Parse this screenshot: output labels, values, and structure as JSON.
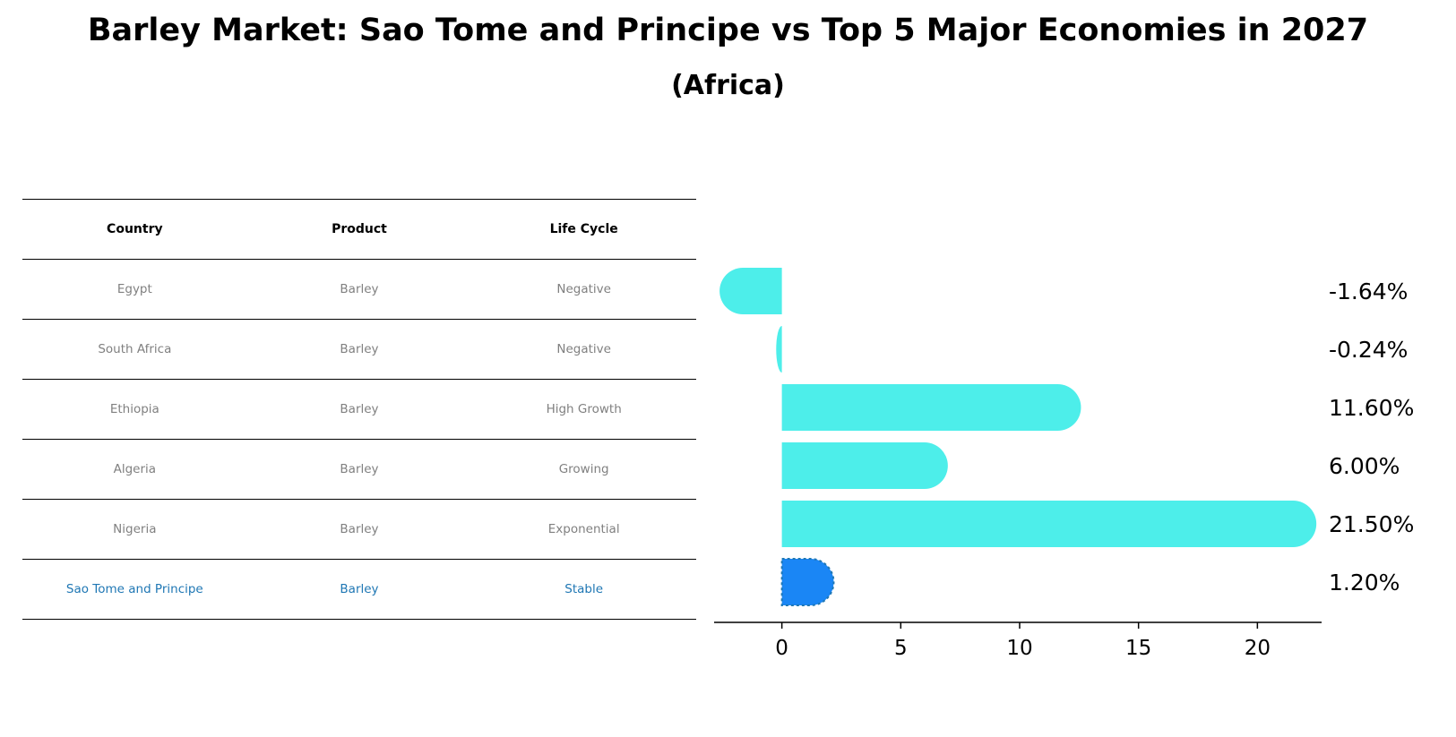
{
  "title": "Barley Market: Sao Tome and Principe vs Top 5 Major Economies in 2027",
  "subtitle": "(Africa)",
  "table": {
    "headers": [
      "Country",
      "Product",
      "Life Cycle"
    ],
    "rows": [
      [
        "Egypt",
        "Barley",
        "Negative"
      ],
      [
        "South Africa",
        "Barley",
        "Negative"
      ],
      [
        "Ethiopia",
        "Barley",
        "High Growth"
      ],
      [
        "Algeria",
        "Barley",
        "Growing"
      ],
      [
        "Nigeria",
        "Barley",
        "Exponential"
      ],
      [
        "Sao Tome and Principe",
        "Barley",
        "Stable"
      ]
    ],
    "highlight_row": 5
  },
  "colors": {
    "bar": "#4deeea",
    "highlight_bar": "#1a86f5",
    "highlight_text": "#1f77b4",
    "muted_text": "#808080"
  },
  "chart_data": {
    "type": "bar",
    "orientation": "horizontal",
    "categories": [
      "Egypt",
      "South Africa",
      "Ethiopia",
      "Algeria",
      "Nigeria",
      "Sao Tome and Principe"
    ],
    "values": [
      -1.64,
      -0.24,
      11.6,
      6.0,
      21.5,
      1.2
    ],
    "value_labels": [
      "-1.64%",
      "-0.24%",
      "11.60%",
      "6.00%",
      "21.50%",
      "1.20%"
    ],
    "xticks": [
      0,
      5,
      10,
      15,
      20
    ],
    "xtick_labels": [
      "0",
      "5",
      "10",
      "15",
      "20"
    ],
    "xlim": [
      -2.85,
      22.7
    ],
    "highlight_index": 5
  }
}
